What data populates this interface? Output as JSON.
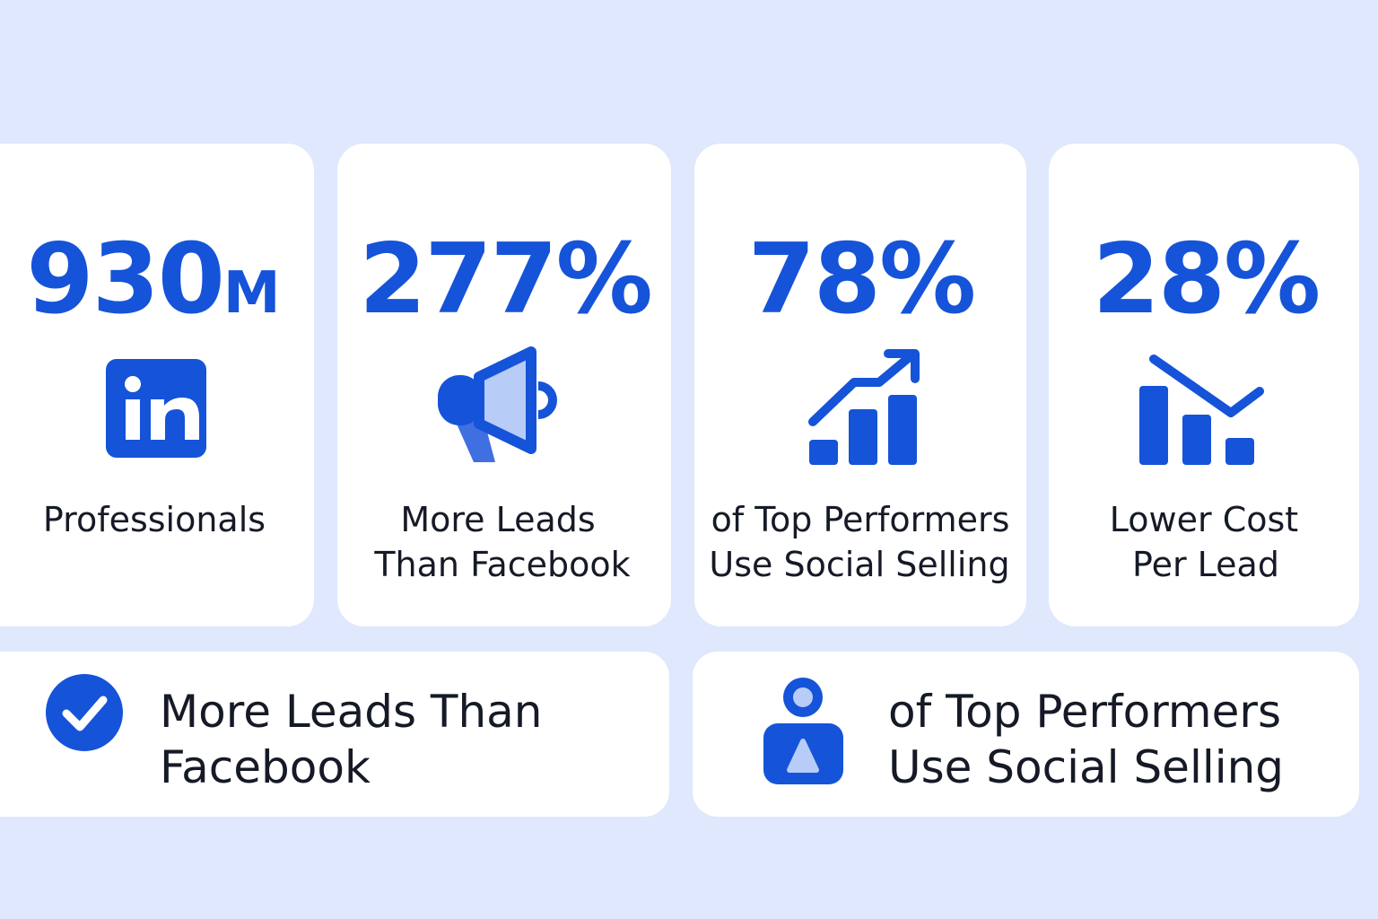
{
  "cards": [
    {
      "stat": "930",
      "stat_suffix": "M",
      "label": [
        "Professionals"
      ]
    },
    {
      "stat": "277%",
      "label": [
        "More Leads",
        "Than Facebook"
      ]
    },
    {
      "stat": "78%",
      "label": [
        "of Top Performers",
        "Use Social Selling"
      ]
    },
    {
      "stat": "28%",
      "label": [
        "Lower Cost",
        "Per Lead"
      ]
    }
  ],
  "highlights": [
    {
      "text": [
        "More Leads Than",
        "Facebook"
      ]
    },
    {
      "text": [
        "of Top Performers",
        "Use Social Selling"
      ]
    }
  ]
}
